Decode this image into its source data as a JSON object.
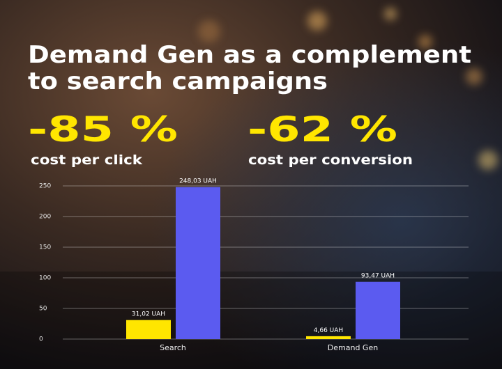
{
  "title_lines": [
    "Demand Gen as a complement",
    "to search campaigns"
  ],
  "stats": [
    {
      "text": "-85 %",
      "caption": "cost per click"
    },
    {
      "text": "-62 %",
      "caption": "cost per conversion"
    }
  ],
  "chart_data": {
    "type": "bar",
    "categories": [
      "Search",
      "Demand Gen"
    ],
    "series": [
      {
        "color": "#ffe600",
        "values": [
          31.02,
          4.66
        ],
        "value_labels": [
          "31,02 UAH",
          "4,66 UAH"
        ]
      },
      {
        "color": "#5b5bf0",
        "values": [
          248.03,
          93.47
        ],
        "value_labels": [
          "248,03 UAH",
          "93,47 UAH"
        ]
      }
    ],
    "ylim": [
      0,
      250
    ],
    "yticks": [
      0,
      50,
      100,
      150,
      200,
      250
    ],
    "grid": true
  }
}
